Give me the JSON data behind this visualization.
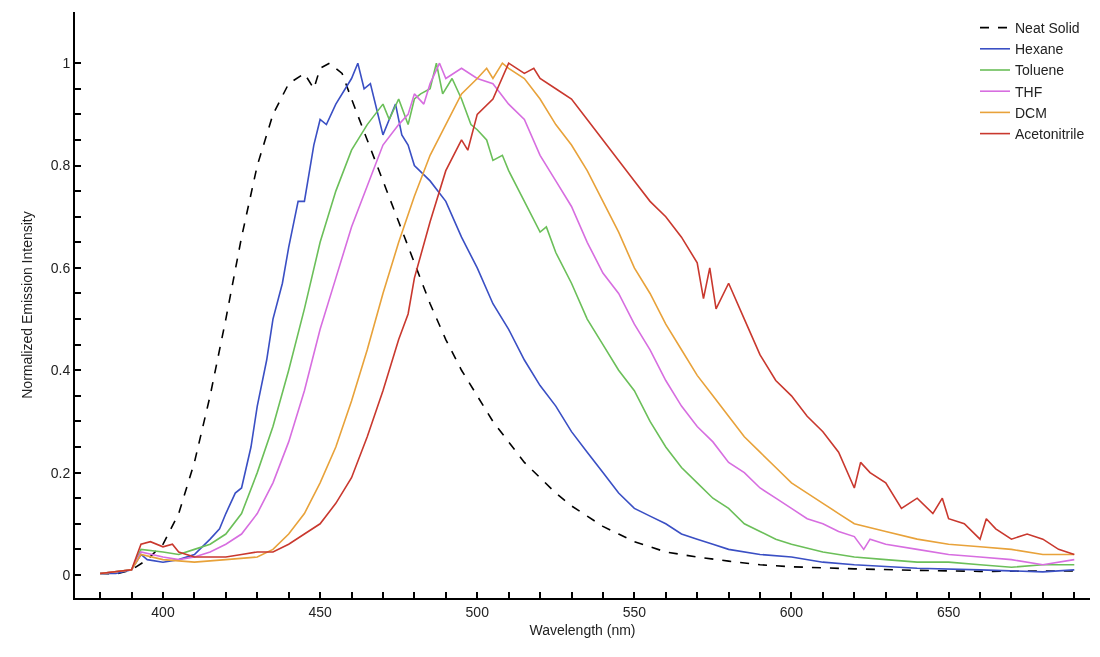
{
  "chart_data": {
    "type": "line",
    "xlabel": "Wavelength (nm)",
    "ylabel": "Normalized Emission Intensity",
    "xlim": [
      372,
      695
    ],
    "ylim": [
      -0.045,
      1.1
    ],
    "xticks": [
      {
        "value": 380,
        "label": null
      },
      {
        "value": 390,
        "label": null
      },
      400,
      {
        "value": 410,
        "label": null
      },
      {
        "value": 420,
        "label": null
      },
      {
        "value": 430,
        "label": null
      },
      {
        "value": 440,
        "label": null
      },
      450,
      {
        "value": 460,
        "label": null
      },
      {
        "value": 470,
        "label": null
      },
      {
        "value": 480,
        "label": null
      },
      {
        "value": 490,
        "label": null
      },
      500,
      {
        "value": 510,
        "label": null
      },
      {
        "value": 520,
        "label": null
      },
      {
        "value": 530,
        "label": null
      },
      {
        "value": 540,
        "label": null
      },
      550,
      {
        "value": 560,
        "label": null
      },
      {
        "value": 570,
        "label": null
      },
      {
        "value": 580,
        "label": null
      },
      {
        "value": 590,
        "label": null
      },
      600,
      {
        "value": 610,
        "label": null
      },
      {
        "value": 620,
        "label": null
      },
      {
        "value": 630,
        "label": null
      },
      {
        "value": 640,
        "label": null
      },
      650,
      {
        "value": 660,
        "label": null
      },
      {
        "value": 670,
        "label": null
      },
      {
        "value": 680,
        "label": null
      },
      {
        "value": 690,
        "label": null
      }
    ],
    "yticks": [
      0,
      {
        "value": 0.05,
        "label": null
      },
      {
        "value": 0.1,
        "label": null
      },
      {
        "value": 0.15,
        "label": null
      },
      0.2,
      {
        "value": 0.25,
        "label": null
      },
      {
        "value": 0.3,
        "label": null
      },
      {
        "value": 0.35,
        "label": null
      },
      0.4,
      {
        "value": 0.45,
        "label": null
      },
      {
        "value": 0.5,
        "label": null
      },
      {
        "value": 0.55,
        "label": null
      },
      0.6,
      {
        "value": 0.65,
        "label": null
      },
      {
        "value": 0.7,
        "label": null
      },
      {
        "value": 0.75,
        "label": null
      },
      0.8,
      {
        "value": 0.85,
        "label": null
      },
      {
        "value": 0.9,
        "label": null
      },
      {
        "value": 0.95,
        "label": null
      },
      1
    ],
    "legend": "top right",
    "marker": "none",
    "series": [
      {
        "name": "Neat Solid",
        "color": "#000000",
        "line_style": "dashed",
        "x": [
          380,
          385,
          390,
          395,
          400,
          405,
          410,
          415,
          420,
          425,
          430,
          435,
          440,
          445,
          448,
          450,
          453,
          457,
          460,
          465,
          470,
          475,
          480,
          485,
          490,
          495,
          500,
          505,
          510,
          515,
          520,
          525,
          530,
          535,
          540,
          545,
          550,
          555,
          560,
          570,
          580,
          590,
          600,
          620,
          640,
          660,
          690
        ],
        "values": [
          0.003,
          0.002,
          0.01,
          0.03,
          0.06,
          0.12,
          0.22,
          0.35,
          0.5,
          0.66,
          0.8,
          0.9,
          0.96,
          0.98,
          0.95,
          0.99,
          1.0,
          0.98,
          0.93,
          0.85,
          0.77,
          0.69,
          0.61,
          0.53,
          0.46,
          0.4,
          0.35,
          0.3,
          0.26,
          0.22,
          0.19,
          0.16,
          0.135,
          0.115,
          0.095,
          0.08,
          0.065,
          0.055,
          0.045,
          0.035,
          0.027,
          0.02,
          0.016,
          0.012,
          0.009,
          0.007,
          0.008
        ]
      },
      {
        "name": "Hexane",
        "color": "#3a4fc4",
        "x": [
          380,
          385,
          390,
          393,
          395,
          400,
          405,
          410,
          415,
          418,
          420,
          423,
          425,
          428,
          430,
          433,
          435,
          438,
          440,
          443,
          445,
          448,
          450,
          452,
          455,
          458,
          460,
          462,
          464,
          466,
          468,
          470,
          472,
          474,
          476,
          478,
          480,
          485,
          490,
          495,
          500,
          505,
          510,
          515,
          520,
          525,
          530,
          535,
          540,
          545,
          550,
          555,
          560,
          565,
          570,
          575,
          580,
          590,
          600,
          610,
          620,
          640,
          660,
          680,
          690
        ],
        "values": [
          0.003,
          0.003,
          0.01,
          0.04,
          0.03,
          0.025,
          0.03,
          0.04,
          0.07,
          0.09,
          0.12,
          0.16,
          0.17,
          0.25,
          0.33,
          0.42,
          0.5,
          0.57,
          0.64,
          0.73,
          0.73,
          0.84,
          0.89,
          0.88,
          0.92,
          0.95,
          0.97,
          1.0,
          0.95,
          0.96,
          0.91,
          0.86,
          0.89,
          0.92,
          0.86,
          0.84,
          0.8,
          0.77,
          0.73,
          0.66,
          0.6,
          0.53,
          0.48,
          0.42,
          0.37,
          0.33,
          0.28,
          0.24,
          0.2,
          0.16,
          0.13,
          0.115,
          0.1,
          0.08,
          0.07,
          0.06,
          0.05,
          0.04,
          0.035,
          0.025,
          0.02,
          0.013,
          0.01,
          0.006,
          0.01
        ]
      },
      {
        "name": "Toluene",
        "color": "#6bbf59",
        "x": [
          380,
          390,
          393,
          400,
          405,
          410,
          415,
          420,
          425,
          430,
          435,
          440,
          445,
          450,
          455,
          460,
          465,
          470,
          472,
          475,
          478,
          480,
          482,
          485,
          487,
          489,
          492,
          495,
          498,
          500,
          503,
          505,
          508,
          510,
          515,
          520,
          522,
          525,
          530,
          535,
          540,
          545,
          550,
          555,
          560,
          565,
          570,
          575,
          580,
          585,
          590,
          595,
          600,
          610,
          620,
          630,
          640,
          650,
          660,
          670,
          680,
          690
        ],
        "values": [
          0.003,
          0.01,
          0.05,
          0.045,
          0.04,
          0.05,
          0.06,
          0.08,
          0.12,
          0.2,
          0.29,
          0.4,
          0.52,
          0.65,
          0.75,
          0.83,
          0.88,
          0.92,
          0.89,
          0.93,
          0.88,
          0.93,
          0.94,
          0.95,
          1.0,
          0.94,
          0.97,
          0.93,
          0.88,
          0.87,
          0.85,
          0.81,
          0.82,
          0.79,
          0.73,
          0.67,
          0.68,
          0.63,
          0.57,
          0.5,
          0.45,
          0.4,
          0.36,
          0.3,
          0.25,
          0.21,
          0.18,
          0.15,
          0.13,
          0.1,
          0.085,
          0.07,
          0.06,
          0.045,
          0.035,
          0.03,
          0.025,
          0.025,
          0.02,
          0.015,
          0.02,
          0.02
        ]
      },
      {
        "name": "THF",
        "color": "#d76ee0",
        "x": [
          380,
          390,
          393,
          400,
          405,
          410,
          415,
          420,
          425,
          430,
          435,
          440,
          445,
          450,
          455,
          460,
          465,
          470,
          475,
          478,
          480,
          483,
          485,
          488,
          490,
          495,
          500,
          505,
          510,
          515,
          520,
          525,
          530,
          535,
          540,
          545,
          550,
          555,
          560,
          565,
          570,
          575,
          580,
          585,
          590,
          595,
          600,
          605,
          610,
          615,
          620,
          623,
          625,
          630,
          640,
          650,
          660,
          670,
          680,
          690
        ],
        "values": [
          0.003,
          0.01,
          0.045,
          0.035,
          0.03,
          0.035,
          0.045,
          0.06,
          0.08,
          0.12,
          0.18,
          0.26,
          0.36,
          0.48,
          0.58,
          0.68,
          0.76,
          0.84,
          0.88,
          0.9,
          0.94,
          0.92,
          0.96,
          1.0,
          0.97,
          0.99,
          0.97,
          0.96,
          0.92,
          0.89,
          0.82,
          0.77,
          0.72,
          0.65,
          0.59,
          0.55,
          0.49,
          0.44,
          0.38,
          0.33,
          0.29,
          0.26,
          0.22,
          0.2,
          0.17,
          0.15,
          0.13,
          0.11,
          0.1,
          0.085,
          0.075,
          0.05,
          0.07,
          0.06,
          0.05,
          0.04,
          0.035,
          0.03,
          0.02,
          0.03
        ]
      },
      {
        "name": "DCM",
        "color": "#e8a23a",
        "x": [
          380,
          390,
          393,
          400,
          410,
          420,
          430,
          435,
          440,
          445,
          450,
          455,
          460,
          465,
          470,
          475,
          480,
          485,
          490,
          495,
          500,
          503,
          505,
          508,
          510,
          515,
          520,
          525,
          530,
          535,
          540,
          545,
          550,
          555,
          560,
          565,
          570,
          575,
          580,
          585,
          590,
          595,
          600,
          605,
          610,
          615,
          620,
          630,
          640,
          650,
          660,
          670,
          680,
          690
        ],
        "values": [
          0.003,
          0.01,
          0.04,
          0.03,
          0.025,
          0.03,
          0.035,
          0.05,
          0.08,
          0.12,
          0.18,
          0.25,
          0.34,
          0.44,
          0.55,
          0.65,
          0.74,
          0.82,
          0.88,
          0.94,
          0.97,
          0.99,
          0.97,
          1.0,
          0.99,
          0.97,
          0.93,
          0.88,
          0.84,
          0.79,
          0.73,
          0.67,
          0.6,
          0.55,
          0.49,
          0.44,
          0.39,
          0.35,
          0.31,
          0.27,
          0.24,
          0.21,
          0.18,
          0.16,
          0.14,
          0.12,
          0.1,
          0.085,
          0.07,
          0.06,
          0.055,
          0.05,
          0.04,
          0.04
        ]
      },
      {
        "name": "Acetonitrile",
        "color": "#c9382e",
        "x": [
          380,
          390,
          393,
          396,
          400,
          403,
          405,
          410,
          415,
          420,
          425,
          430,
          435,
          440,
          445,
          450,
          455,
          460,
          465,
          470,
          475,
          478,
          480,
          485,
          490,
          495,
          497,
          500,
          505,
          510,
          515,
          518,
          520,
          525,
          530,
          535,
          540,
          545,
          550,
          555,
          560,
          565,
          570,
          572,
          574,
          576,
          580,
          585,
          590,
          595,
          600,
          605,
          610,
          615,
          620,
          622,
          625,
          630,
          635,
          640,
          645,
          648,
          650,
          655,
          660,
          662,
          665,
          670,
          675,
          680,
          685,
          690
        ],
        "values": [
          0.003,
          0.01,
          0.06,
          0.065,
          0.055,
          0.06,
          0.045,
          0.035,
          0.035,
          0.035,
          0.04,
          0.045,
          0.045,
          0.06,
          0.08,
          0.1,
          0.14,
          0.19,
          0.27,
          0.36,
          0.46,
          0.51,
          0.58,
          0.69,
          0.79,
          0.85,
          0.83,
          0.9,
          0.93,
          1.0,
          0.98,
          0.99,
          0.97,
          0.95,
          0.93,
          0.89,
          0.85,
          0.81,
          0.77,
          0.73,
          0.7,
          0.66,
          0.61,
          0.54,
          0.6,
          0.52,
          0.57,
          0.5,
          0.43,
          0.38,
          0.35,
          0.31,
          0.28,
          0.24,
          0.17,
          0.22,
          0.2,
          0.18,
          0.13,
          0.15,
          0.12,
          0.15,
          0.11,
          0.1,
          0.07,
          0.11,
          0.09,
          0.07,
          0.08,
          0.07,
          0.05,
          0.04
        ]
      }
    ]
  }
}
